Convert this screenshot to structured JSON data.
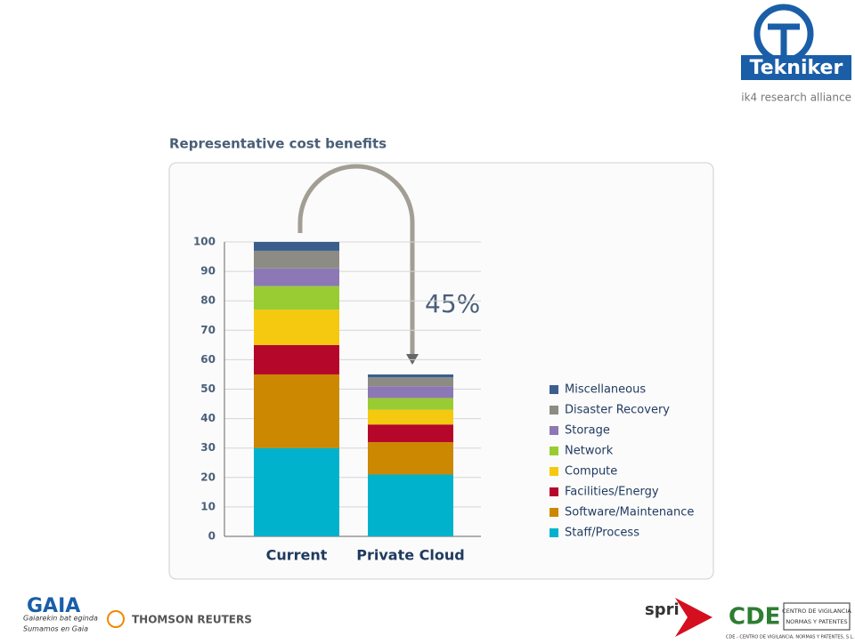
{
  "logos": {
    "tekniker": "Tekniker",
    "alliance": "ik4 research alliance",
    "gaia": "GAIA",
    "gaia_tagline": [
      "Gaiarekin bat eginda",
      "Sumamos en Gaia"
    ],
    "thomson": "THOMSON REUTERS",
    "spri": "spri",
    "cde": "CDE",
    "cde_box": [
      "CENTRO DE VIGILANCIA",
      "NORMAS Y PATENTES"
    ],
    "cde_caption": "CDE - CENTRO DE VIGILANCIA, NORMAS Y PATENTES, S.L."
  },
  "chart_data": {
    "type": "stacked_bar",
    "title": "Representative cost benefits",
    "annotation": "45%",
    "categories": [
      "Current",
      "Private Cloud"
    ],
    "ylim": [
      0,
      100
    ],
    "yticks": [
      0,
      10,
      20,
      30,
      40,
      50,
      60,
      70,
      80,
      90,
      100
    ],
    "grid": true,
    "series": [
      {
        "name": "Staff/Process",
        "color": "#00b2cc",
        "values": [
          30,
          21
        ]
      },
      {
        "name": "Software/Maintenance",
        "color": "#cc8800",
        "values": [
          25,
          11
        ]
      },
      {
        "name": "Facilities/Energy",
        "color": "#b5072a",
        "values": [
          10,
          6
        ]
      },
      {
        "name": "Compute",
        "color": "#f5c90f",
        "values": [
          12,
          5
        ]
      },
      {
        "name": "Network",
        "color": "#99cc33",
        "values": [
          8,
          4
        ]
      },
      {
        "name": "Storage",
        "color": "#8c78b4",
        "values": [
          6,
          4
        ]
      },
      {
        "name": "Disaster Recovery",
        "color": "#8c8c85",
        "values": [
          6,
          3
        ]
      },
      {
        "name": "Miscellaneous",
        "color": "#3a5f8f",
        "values": [
          3,
          1
        ]
      }
    ]
  }
}
